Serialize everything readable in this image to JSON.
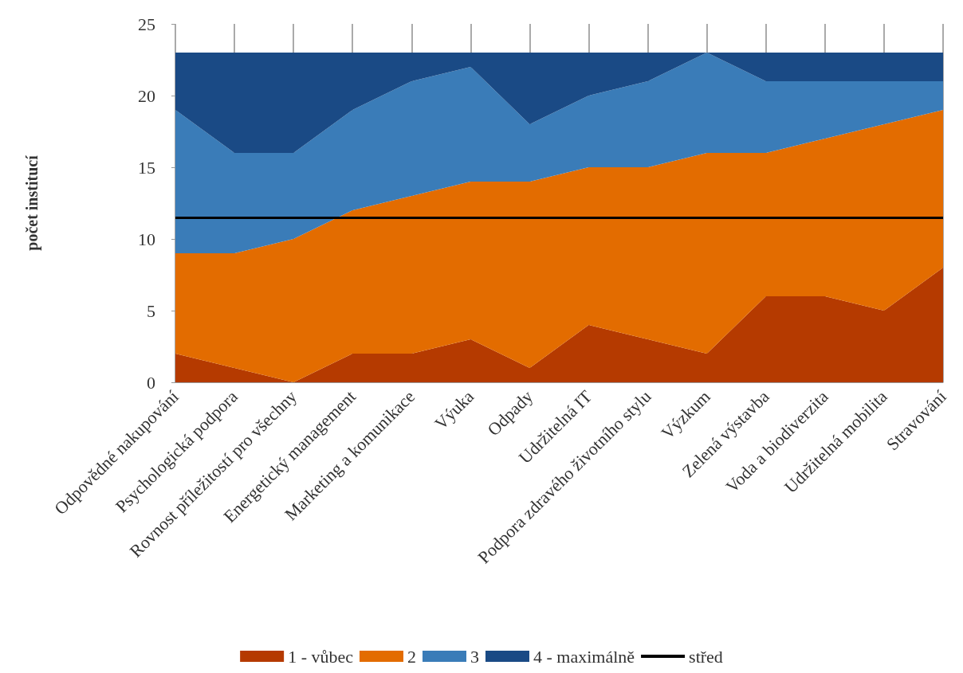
{
  "chart_data": {
    "type": "area",
    "stacked": true,
    "ylabel": "počet institucí",
    "categories": [
      "Odpovědné nakupování",
      "Psychologická podpora",
      "Rovnost příležitostí pro všechny",
      "Energetický management",
      "Marketing a komunikace",
      "Výuka",
      "Odpady",
      "Udržitelná IT",
      "Podpora zdravého životního stylu",
      "Výzkum",
      "Zelená výstavba",
      "Voda a biodiverzita",
      "Udržitelná mobilita",
      "Stravování"
    ],
    "series": [
      {
        "name": "1 - vůbec",
        "color": "#b53a00",
        "values": [
          2,
          1,
          0,
          2,
          2,
          3,
          1,
          4,
          3,
          2,
          6,
          6,
          5,
          8
        ]
      },
      {
        "name": "2",
        "color": "#e36c00",
        "values": [
          7,
          8,
          10,
          10,
          11,
          11,
          13,
          11,
          12,
          14,
          10,
          11,
          13,
          11
        ]
      },
      {
        "name": "3",
        "color": "#3a7cb8",
        "values": [
          10,
          7,
          6,
          7,
          8,
          8,
          4,
          5,
          6,
          7,
          5,
          4,
          3,
          2
        ]
      },
      {
        "name": "4 - maximálně",
        "color": "#1a4a85",
        "values": [
          4,
          7,
          7,
          4,
          2,
          1,
          5,
          3,
          2,
          0,
          2,
          2,
          2,
          2
        ]
      }
    ],
    "ref_lines": [
      {
        "axis": "y",
        "value": 11.5,
        "label": "střed",
        "color": "#000000"
      }
    ],
    "ylim": [
      0,
      25
    ],
    "yticks": [
      0,
      5,
      10,
      15,
      20,
      25
    ],
    "grid": "x",
    "legend": "bottom"
  }
}
